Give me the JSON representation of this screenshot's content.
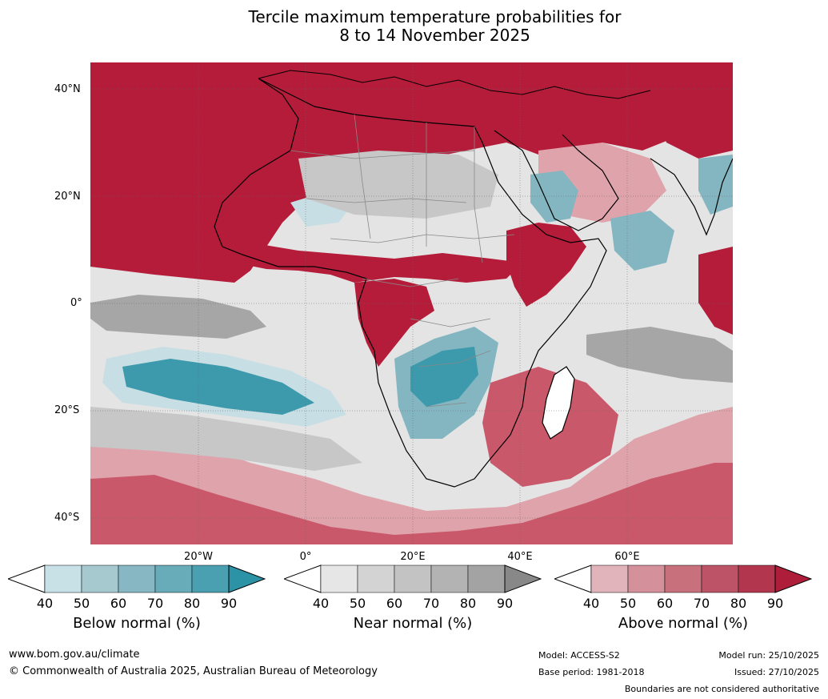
{
  "title": {
    "line1": "Tercile maximum temperature probabilities for",
    "line2": "8 to 14 November 2025"
  },
  "map": {
    "lat_labels": [
      "40°N",
      "20°N",
      "0°",
      "20°S",
      "40°S"
    ],
    "lon_labels": [
      "20°W",
      "0°",
      "20°E",
      "40°E",
      "60°E"
    ],
    "colors": {
      "above_dark": "#b51c3a",
      "above_mid": "#c9586a",
      "above_light": "#dfa3ac",
      "near_light": "#e4e4e4",
      "near_mid": "#c7c7c7",
      "near_dark": "#a6a6a6",
      "below_light": "#c7dfe4",
      "below_mid": "#84b6c2",
      "below_dark": "#3c9aac",
      "land_outline": "#000000",
      "border": "#888888"
    }
  },
  "colorbars": [
    {
      "title": "Below normal (%)",
      "ticks": [
        "40",
        "50",
        "60",
        "70",
        "80",
        "90"
      ],
      "colors": [
        "#ffffff",
        "#c8e1e7",
        "#a6c8cf",
        "#86b7c2",
        "#68acb9",
        "#4a9fb0",
        "#2c92a6"
      ]
    },
    {
      "title": "Near normal (%)",
      "ticks": [
        "40",
        "50",
        "60",
        "70",
        "80",
        "90"
      ],
      "colors": [
        "#ffffff",
        "#e6e6e6",
        "#d3d3d3",
        "#c3c3c3",
        "#b3b3b3",
        "#a3a3a3",
        "#888888"
      ]
    },
    {
      "title": "Above normal (%)",
      "ticks": [
        "40",
        "50",
        "60",
        "70",
        "80",
        "90"
      ],
      "colors": [
        "#ffffff",
        "#e0b4ba",
        "#d4919b",
        "#c8707c",
        "#bd5366",
        "#b3364f",
        "#ae1e3a"
      ]
    }
  ],
  "footer": {
    "website": "www.bom.gov.au/climate",
    "copyright": "© Commonwealth of Australia 2025, Australian Bureau of Meteorology",
    "model": "Model: ACCESS-S2",
    "base_period": "Base period: 1981-2018",
    "model_run": "Model run: 25/10/2025",
    "issued": "Issued: 27/10/2025",
    "disclaimer": "Boundaries are not considered authoritative"
  }
}
